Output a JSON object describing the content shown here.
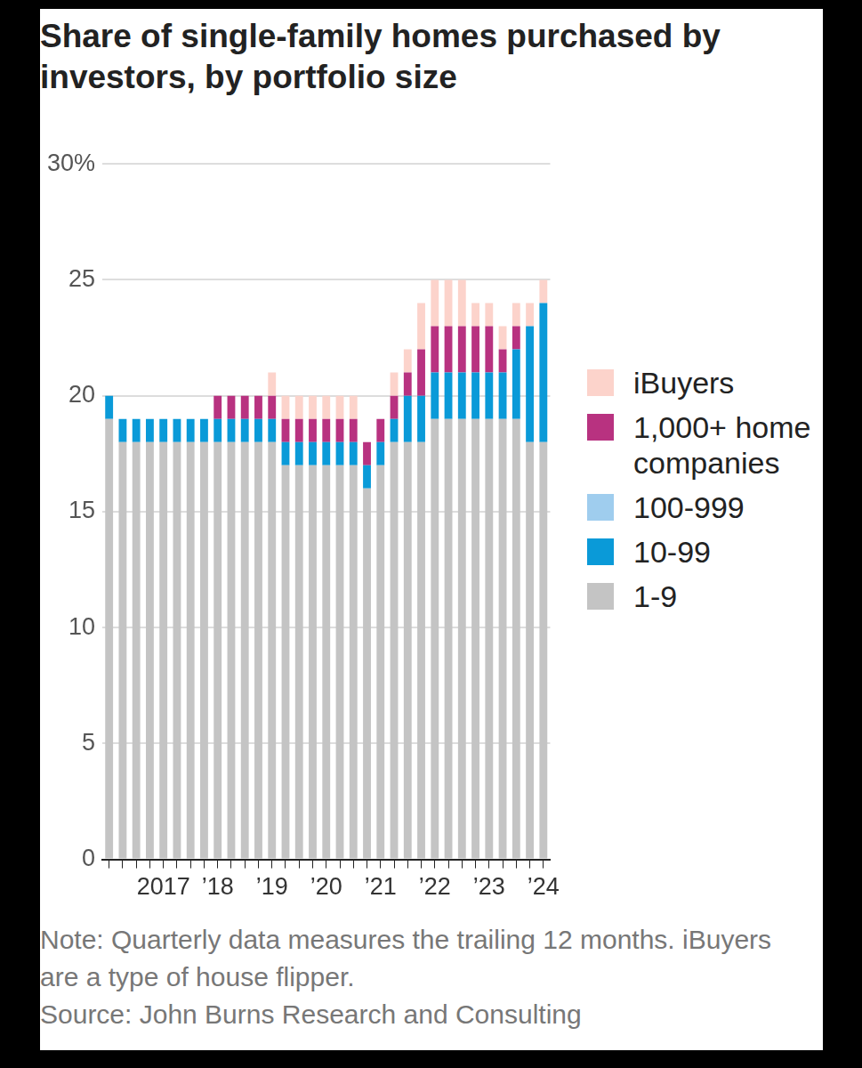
{
  "chart_data": {
    "type": "bar",
    "title": "Share of single-family homes purchased by investors, by portfolio size",
    "note": "Note: Quarterly data measures the trailing 12 months. iBuyers are a type of house flipper.",
    "source": "Source: John Burns Research and Consulting",
    "categories": [
      null,
      null,
      null,
      null,
      "2017",
      null,
      null,
      null,
      "’18",
      null,
      null,
      null,
      "’19",
      null,
      null,
      null,
      "’20",
      null,
      null,
      null,
      "’21",
      null,
      null,
      null,
      "’22",
      null,
      null,
      null,
      "’23",
      null,
      null,
      null,
      "’24"
    ],
    "series": [
      {
        "name": "1-9",
        "color": "#c4c4c4",
        "values": [
          19,
          18,
          18,
          18,
          18,
          18,
          18,
          18,
          18,
          18,
          18,
          18,
          18,
          17,
          17,
          17,
          17,
          17,
          17,
          16,
          17,
          18,
          18,
          18,
          19,
          19,
          19,
          19,
          19,
          19,
          19,
          18,
          18
        ]
      },
      {
        "name": "10-99",
        "color": "#0a9ad8",
        "values": [
          1,
          1,
          1,
          1,
          1,
          1,
          1,
          1,
          1,
          1,
          1,
          1,
          1,
          1,
          1,
          1,
          1,
          1,
          1,
          1,
          1,
          1,
          2,
          2,
          2,
          2,
          2,
          2,
          2,
          2,
          3,
          5,
          6
        ]
      },
      {
        "name": "100-999",
        "color": "#9fcdee",
        "values": [
          0,
          0,
          0,
          0,
          0,
          0,
          0,
          0,
          0,
          0,
          0,
          0,
          0,
          0,
          0,
          0,
          0,
          0,
          0,
          0,
          0,
          0,
          0,
          0,
          0,
          0,
          0,
          0,
          0,
          0,
          0,
          0,
          0
        ]
      },
      {
        "name": "1,000+ home companies",
        "color": "#b83280",
        "values": [
          0,
          0,
          0,
          0,
          0,
          0,
          0,
          0,
          1,
          1,
          1,
          1,
          1,
          1,
          1,
          1,
          1,
          1,
          1,
          1,
          1,
          1,
          1,
          2,
          2,
          2,
          2,
          2,
          2,
          1,
          1,
          0,
          0
        ]
      },
      {
        "name": "iBuyers",
        "color": "#fcd3cb",
        "values": [
          0,
          0,
          0,
          0,
          0,
          0,
          0,
          0,
          0,
          0,
          0,
          0,
          1,
          1,
          1,
          1,
          1,
          1,
          1,
          0,
          0,
          1,
          1,
          2,
          2,
          2,
          2,
          1,
          1,
          1,
          1,
          1,
          1
        ]
      }
    ],
    "ylim": [
      0,
      30
    ],
    "yticks": [
      0,
      5,
      10,
      15,
      20,
      25,
      {
        "value": 30,
        "label": "30%"
      }
    ],
    "stacked": true,
    "grid": true,
    "legend": "right"
  }
}
